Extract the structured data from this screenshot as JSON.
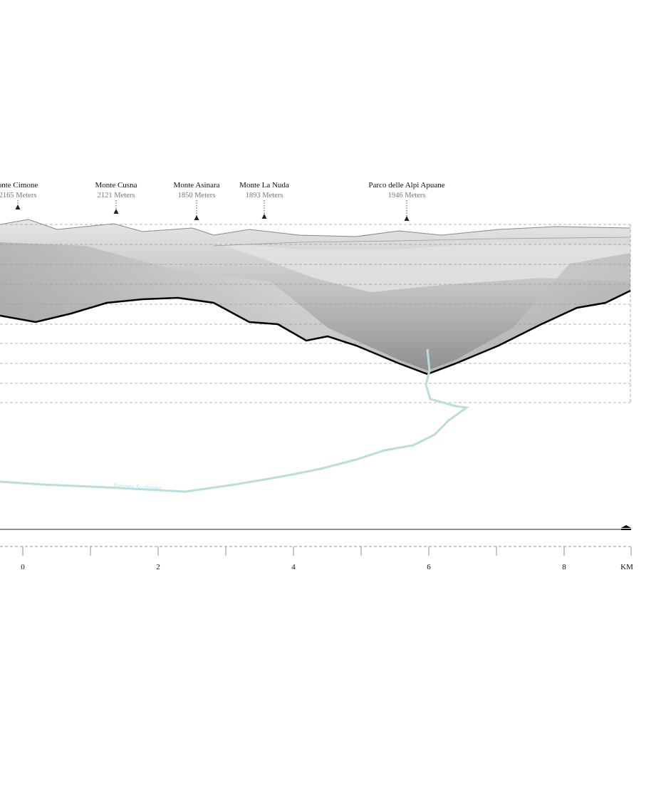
{
  "peaks": [
    {
      "name": "onte Cimone",
      "elevation": "2165 Meters"
    },
    {
      "name": "Monte Cusna",
      "elevation": "2121 Meters"
    },
    {
      "name": "Monte Asinara",
      "elevation": "1850 Meters"
    },
    {
      "name": "Monte La Nuda",
      "elevation": "1893 Meters"
    },
    {
      "name": "Parco delle Alpi Apuane",
      "elevation": "1946 Meters"
    }
  ],
  "river_label": "Torrente Scoltenna",
  "scale": {
    "labels": [
      "0",
      "2",
      "4",
      "6",
      "8",
      "KM"
    ]
  }
}
